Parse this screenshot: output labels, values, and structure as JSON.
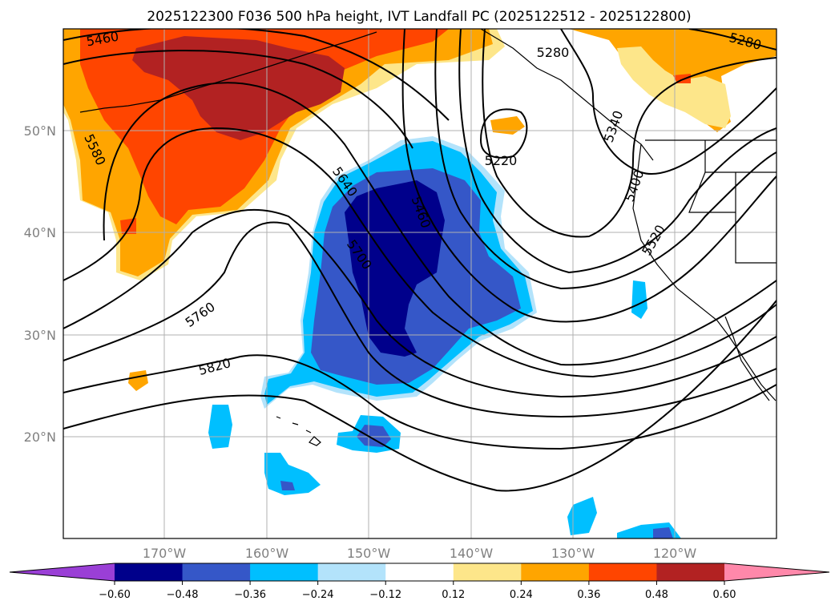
{
  "title": "2025122300 F036 500 hPa height, IVT Landfall PC (2025122512 - 2025122800)",
  "map": {
    "lat_labels": [
      "50°N",
      "40°N",
      "30°N",
      "20°N"
    ],
    "lon_labels": [
      "170°W",
      "160°W",
      "150°W",
      "140°W",
      "130°W",
      "120°W"
    ],
    "contour_labels": [
      "5460",
      "5580",
      "5640",
      "5460",
      "5700",
      "5760",
      "5820",
      "5280",
      "5220",
      "5280",
      "5340",
      "5400",
      "5520"
    ]
  },
  "colorbar": {
    "ticks": [
      "−0.60",
      "−0.48",
      "−0.36",
      "−0.24",
      "−0.12",
      "0.12",
      "0.24",
      "0.36",
      "0.48",
      "0.60"
    ],
    "colors": [
      "#9a3fd6",
      "#00008b",
      "#3557c8",
      "#00bfff",
      "#b3e3fb",
      "#ffffff",
      "#fde68a",
      "#ffa500",
      "#ff4500",
      "#b22222",
      "#ff88aa"
    ]
  },
  "colors": {
    "dark_red": "#b22222",
    "orange_red": "#ff4500",
    "orange": "#ffa500",
    "light_yellow": "#fde68a",
    "light_blue": "#b3e3fb",
    "cyan": "#00bfff",
    "mid_blue": "#3557c8",
    "navy": "#00008b"
  }
}
